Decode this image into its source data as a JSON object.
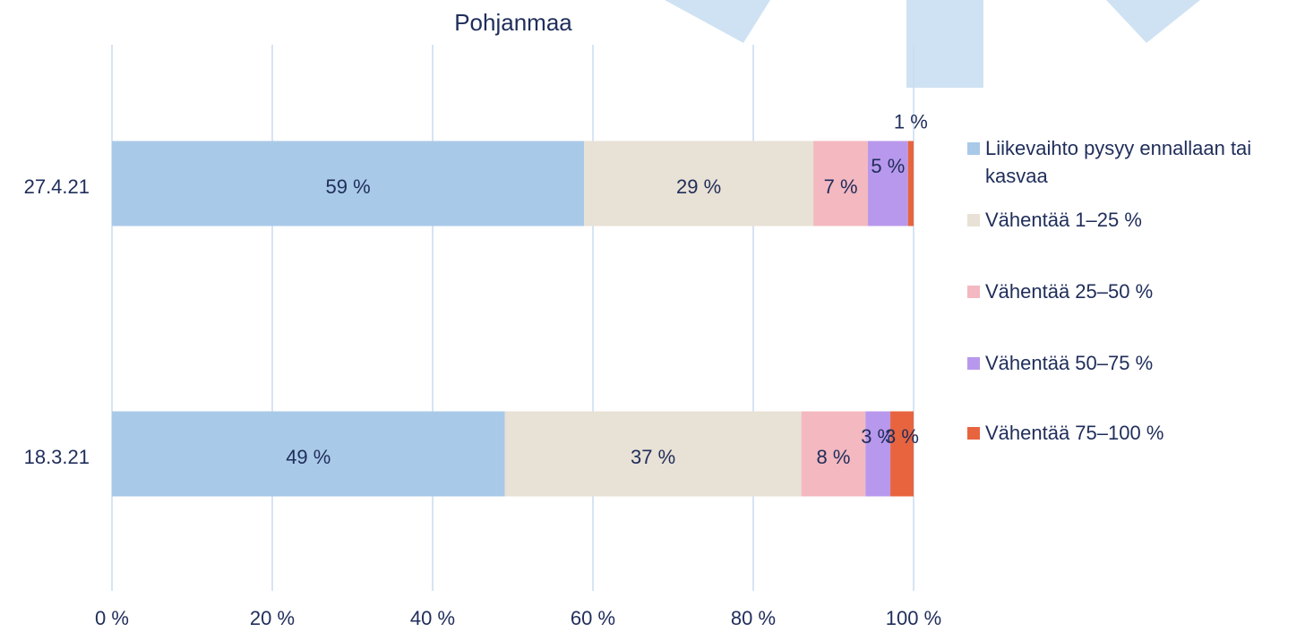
{
  "chart_data": {
    "type": "stacked-bar-horizontal",
    "title": "Pohjanmaa",
    "categories": [
      "27.4.21",
      "18.3.21"
    ],
    "series": [
      {
        "name": "Liikevaihto pysyy ennallaan tai kasvaa",
        "color": "#a9c9e8",
        "values": [
          58.9,
          49
        ],
        "value_labels": [
          "59 %",
          "49 %"
        ]
      },
      {
        "name": "Vähentää 1–25 %",
        "color": "#e8e1d5",
        "values": [
          28.6,
          37
        ],
        "value_labels": [
          "29 %",
          "37 %"
        ]
      },
      {
        "name": "Vähentää 25–50 %",
        "color": "#f4b8c0",
        "values": [
          6.8,
          8
        ],
        "value_labels": [
          "7 %",
          "8 %"
        ]
      },
      {
        "name": "Vähentää 50–75 %",
        "color": "#b898ec",
        "values": [
          5.0,
          3.1
        ],
        "value_labels": [
          "5 %",
          "3 %"
        ]
      },
      {
        "name": "Vähentää 75–100 %",
        "color": "#e8643f",
        "values": [
          0.7,
          2.9
        ],
        "value_labels": [
          "1 %",
          "3 %"
        ]
      }
    ],
    "xlim": [
      0,
      100
    ],
    "xticks": [
      {
        "value": 0,
        "label": "0 %"
      },
      {
        "value": 20,
        "label": "20 %"
      },
      {
        "value": 40,
        "label": "40 %"
      },
      {
        "value": 60,
        "label": "60 %"
      },
      {
        "value": 80,
        "label": "80 %"
      },
      {
        "value": 100,
        "label": "100 %"
      }
    ],
    "grid": true,
    "legend": "right"
  }
}
